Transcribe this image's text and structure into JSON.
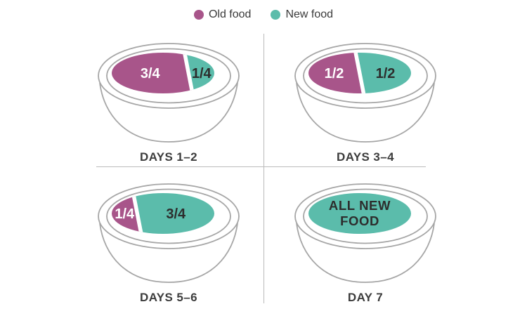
{
  "legend": {
    "items": [
      {
        "name": "old-food",
        "label": "Old food",
        "color": "#A8558A"
      },
      {
        "name": "new-food",
        "label": "New food",
        "color": "#5BBCAB"
      }
    ]
  },
  "colors": {
    "old": "#A8558A",
    "new": "#5BBCAB",
    "bowl_outline": "#A6A6A6",
    "quadrant_divider": "#BBBBBB",
    "label_text": "#3C3C3C",
    "portion_text_on_old": "#FFFFFF",
    "portion_text_on_new": "#2D2D2D",
    "background": "#FFFFFF"
  },
  "bowls": [
    {
      "label": "DAYS 1–2",
      "portions": [
        {
          "food": "old",
          "fraction": 0.75,
          "text": "3/4"
        },
        {
          "food": "new",
          "fraction": 0.25,
          "text": "1/4"
        }
      ]
    },
    {
      "label": "DAYS 3–4",
      "portions": [
        {
          "food": "old",
          "fraction": 0.5,
          "text": "1/2"
        },
        {
          "food": "new",
          "fraction": 0.5,
          "text": "1/2"
        }
      ]
    },
    {
      "label": "DAYS 5–6",
      "portions": [
        {
          "food": "old",
          "fraction": 0.25,
          "text": "1/4"
        },
        {
          "food": "new",
          "fraction": 0.75,
          "text": "3/4"
        }
      ]
    },
    {
      "label": "DAY 7",
      "portions": [
        {
          "food": "new",
          "fraction": 1.0,
          "text": "ALL NEW FOOD",
          "text_lines": [
            "ALL NEW",
            "FOOD"
          ]
        }
      ]
    }
  ]
}
